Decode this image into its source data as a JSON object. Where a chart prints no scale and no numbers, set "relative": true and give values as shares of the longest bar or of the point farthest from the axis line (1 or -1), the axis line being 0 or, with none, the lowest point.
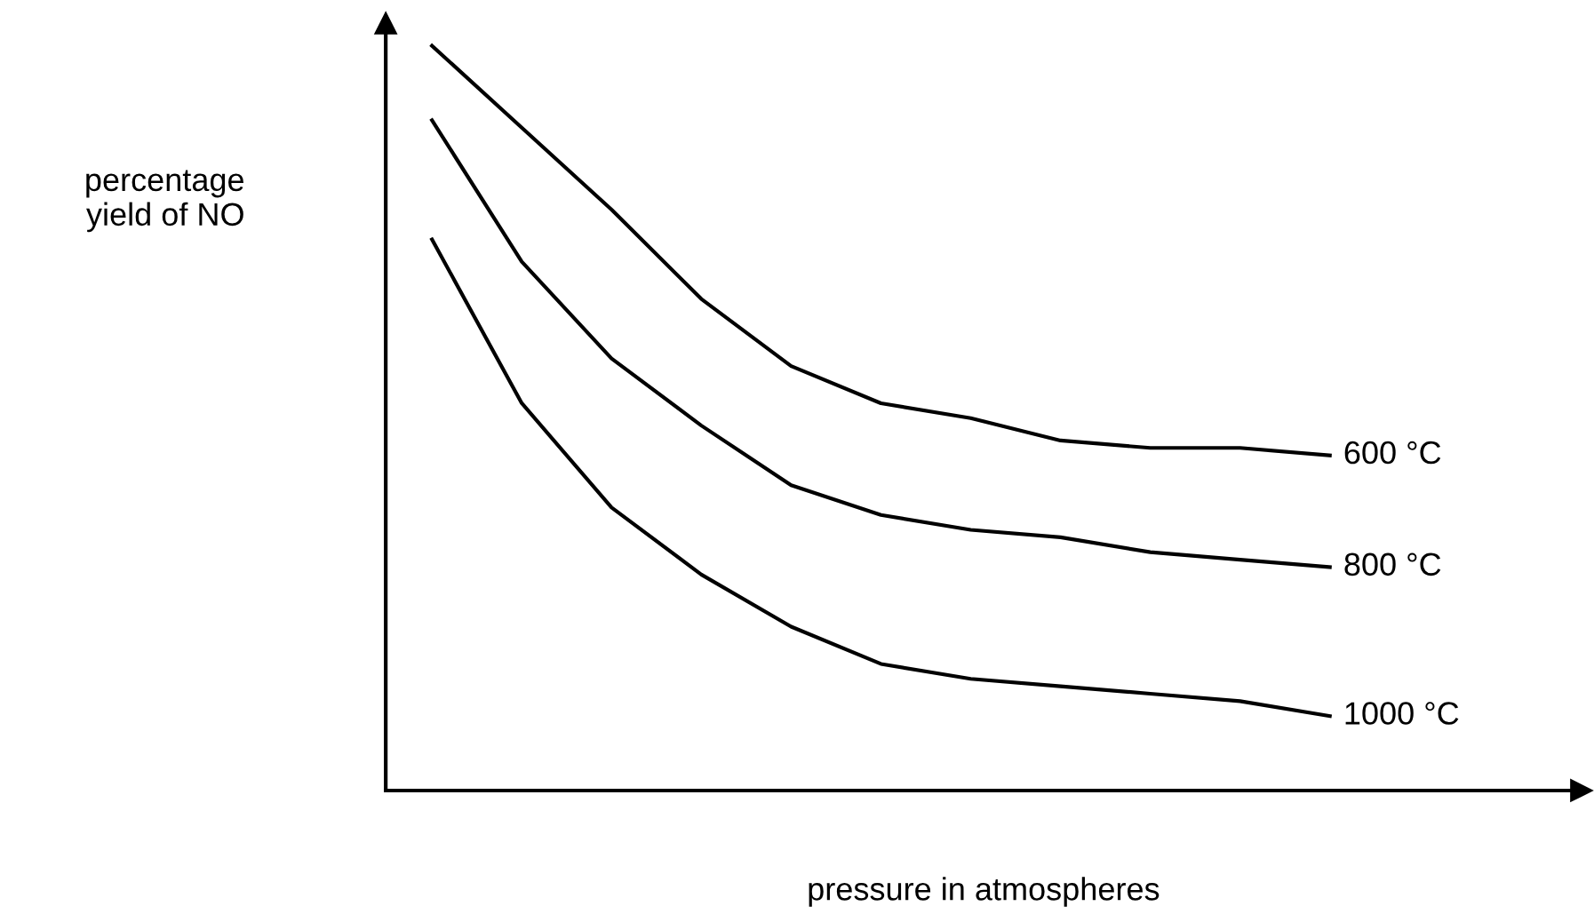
{
  "chart_data": {
    "type": "line",
    "relative": true,
    "xlabel": "pressure in atmospheres",
    "ylabel": "percentage\nyield of NO",
    "categories": [
      null,
      null,
      null,
      null,
      null,
      null,
      null,
      null,
      null,
      null,
      null
    ],
    "legend": false,
    "marker": "none",
    "line_style": "solid",
    "series": [
      {
        "name": "600 °C",
        "color": "#000000",
        "values": [
          1.0,
          0.89,
          0.78,
          0.66,
          0.57,
          0.52,
          0.5,
          0.47,
          0.46,
          0.46,
          0.45
        ]
      },
      {
        "name": "800 °C",
        "color": "#000000",
        "values": [
          0.9,
          0.71,
          0.58,
          0.49,
          0.41,
          0.37,
          0.35,
          0.34,
          0.32,
          0.31,
          0.3
        ]
      },
      {
        "name": "1000 °C",
        "color": "#000000",
        "values": [
          0.74,
          0.52,
          0.38,
          0.29,
          0.22,
          0.17,
          0.15,
          0.14,
          0.13,
          0.12,
          0.1
        ]
      }
    ]
  }
}
